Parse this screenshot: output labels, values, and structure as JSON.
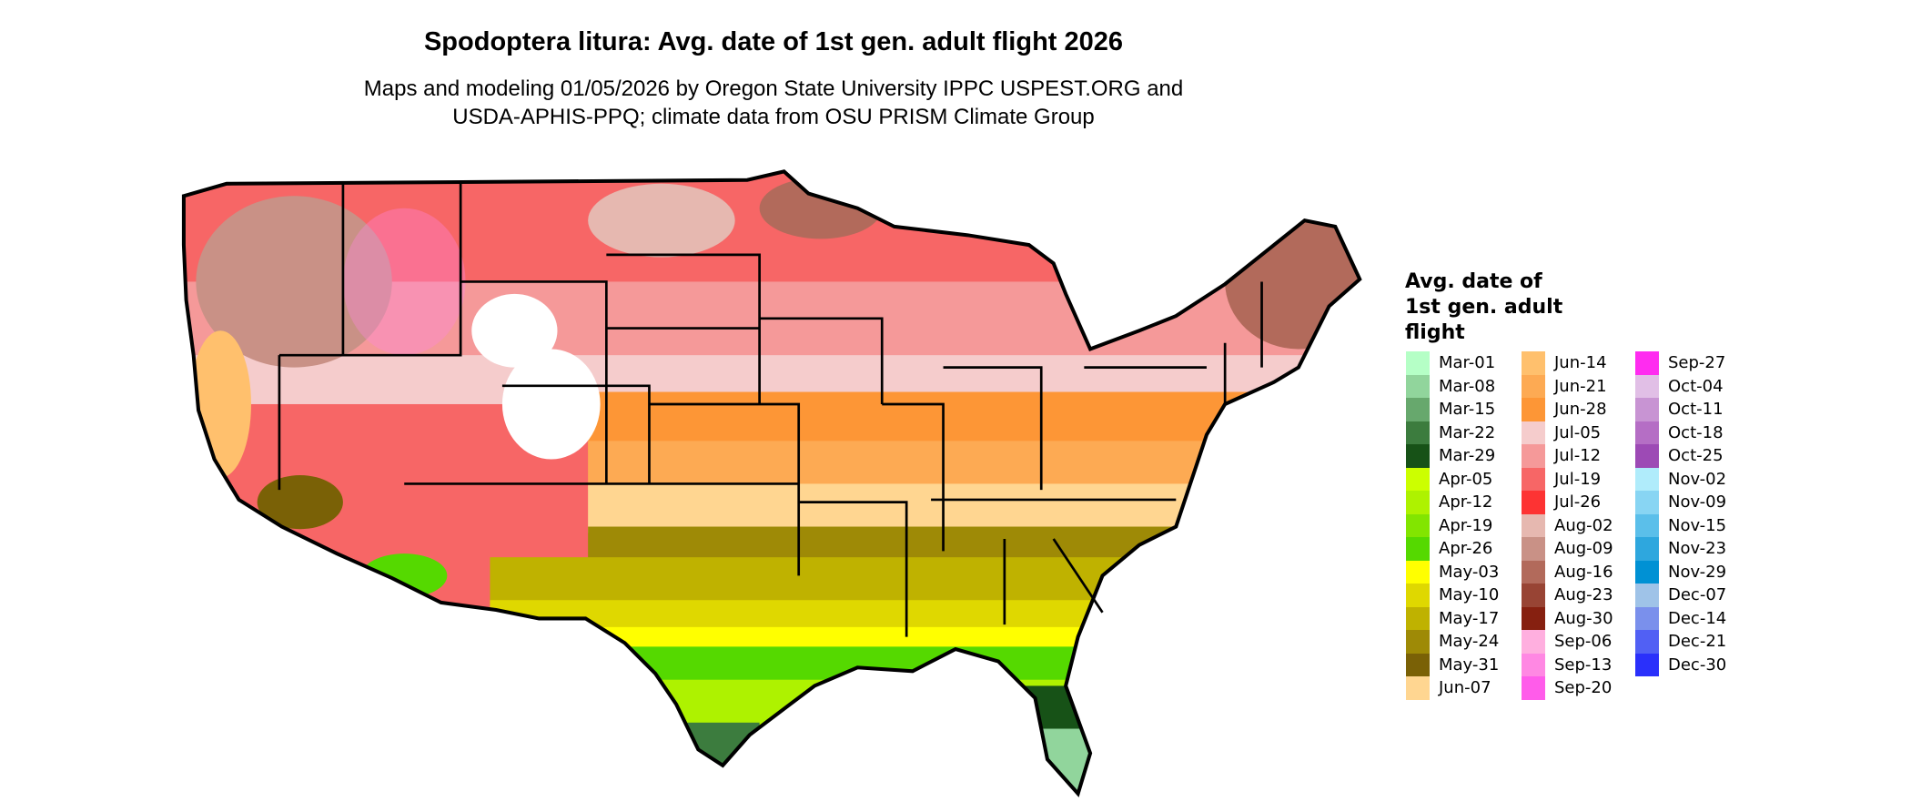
{
  "title": "Spodoptera litura: Avg. date of 1st gen. adult flight 2026",
  "subtitle": [
    "Maps and modeling 01/05/2026 by Oregon State University IPPC USPEST.ORG and",
    "USDA-APHIS-PPQ; climate data from OSU PRISM Climate Group"
  ],
  "legend": {
    "title": [
      "Avg. date of",
      "1st gen. adult",
      "flight"
    ],
    "columns": [
      [
        {
          "label": "Mar-01",
          "color": "#b5ffc6"
        },
        {
          "label": "Mar-08",
          "color": "#91d59c"
        },
        {
          "label": "Mar-15",
          "color": "#67a86d"
        },
        {
          "label": "Mar-22",
          "color": "#3c7c3e"
        },
        {
          "label": "Mar-29",
          "color": "#175217"
        },
        {
          "label": "Apr-05",
          "color": "#ccff00"
        },
        {
          "label": "Apr-12",
          "color": "#aef200"
        },
        {
          "label": "Apr-19",
          "color": "#82e500"
        },
        {
          "label": "Apr-26",
          "color": "#55d900"
        },
        {
          "label": "May-03",
          "color": "#ffff00"
        },
        {
          "label": "May-10",
          "color": "#dfd800"
        },
        {
          "label": "May-17",
          "color": "#bfb200"
        },
        {
          "label": "May-24",
          "color": "#9e8a06"
        },
        {
          "label": "May-31",
          "color": "#7a6106"
        },
        {
          "label": "Jun-07",
          "color": "#ffd691"
        }
      ],
      [
        {
          "label": "Jun-14",
          "color": "#ffc06d"
        },
        {
          "label": "Jun-21",
          "color": "#fdaa53"
        },
        {
          "label": "Jun-28",
          "color": "#fd9636"
        },
        {
          "label": "Jul-05",
          "color": "#f5cccc"
        },
        {
          "label": "Jul-12",
          "color": "#f59999"
        },
        {
          "label": "Jul-19",
          "color": "#f76666"
        },
        {
          "label": "Jul-26",
          "color": "#fd3333"
        },
        {
          "label": "Aug-02",
          "color": "#e6b8b0"
        },
        {
          "label": "Aug-09",
          "color": "#c99186"
        },
        {
          "label": "Aug-16",
          "color": "#b26a5b"
        },
        {
          "label": "Aug-23",
          "color": "#984434"
        },
        {
          "label": "Aug-30",
          "color": "#862010"
        },
        {
          "label": "Sep-06",
          "color": "#ffafdf"
        },
        {
          "label": "Sep-13",
          "color": "#ff88e3"
        },
        {
          "label": "Sep-20",
          "color": "#ff5cea"
        }
      ],
      [
        {
          "label": "Sep-27",
          "color": "#ff2cf0"
        },
        {
          "label": "Oct-04",
          "color": "#e1bfe6"
        },
        {
          "label": "Oct-11",
          "color": "#c894d3"
        },
        {
          "label": "Oct-18",
          "color": "#b56ec5"
        },
        {
          "label": "Oct-25",
          "color": "#9d4ab5"
        },
        {
          "label": "Nov-02",
          "color": "#b0ecfb"
        },
        {
          "label": "Nov-09",
          "color": "#88d5f3"
        },
        {
          "label": "Nov-15",
          "color": "#5bbfea"
        },
        {
          "label": "Nov-23",
          "color": "#2ea7de"
        },
        {
          "label": "Nov-29",
          "color": "#0091d4"
        },
        {
          "label": "Dec-07",
          "color": "#9fc3e8"
        },
        {
          "label": "Dec-14",
          "color": "#7a90ec"
        },
        {
          "label": "Dec-21",
          "color": "#5160f4"
        },
        {
          "label": "Dec-30",
          "color": "#2a30fb"
        }
      ]
    ]
  }
}
